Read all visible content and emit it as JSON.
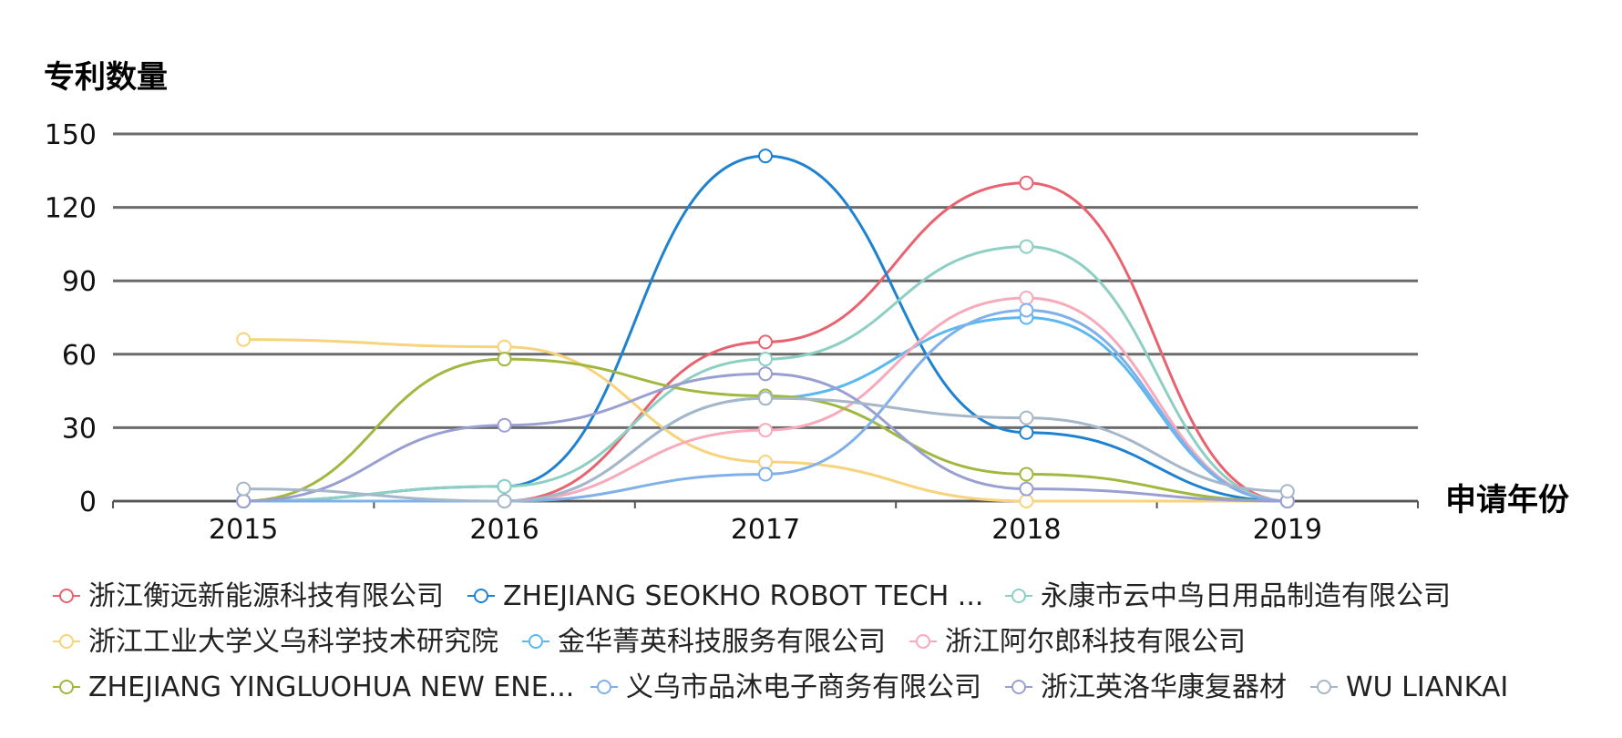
{
  "chart_data": {
    "type": "line",
    "ylabel": "专利数量",
    "xlabel": "申请年份",
    "categories": [
      "2015",
      "2016",
      "2017",
      "2018",
      "2019"
    ],
    "ylim": [
      0,
      150
    ],
    "yticks": [
      0,
      30,
      60,
      90,
      120,
      150
    ],
    "grid": true,
    "legend_position": "bottom",
    "series": [
      {
        "name": "浙江衡远新能源科技有限公司",
        "color": "#e8636f",
        "values": [
          0,
          0,
          65,
          130,
          0
        ]
      },
      {
        "name": "ZHEJIANG SEOKHO ROBOT TECH ...",
        "color": "#1e82d0",
        "values": [
          0,
          6,
          141,
          28,
          0
        ]
      },
      {
        "name": "永康市云中鸟日用品制造有限公司",
        "color": "#8ecfc4",
        "values": [
          0,
          6,
          58,
          104,
          0
        ]
      },
      {
        "name": "浙江工业大学义乌科学技术研究院",
        "color": "#f7d37b",
        "values": [
          66,
          63,
          16,
          0,
          0
        ]
      },
      {
        "name": "金华菁英科技服务有限公司",
        "color": "#5ab8ef",
        "values": [
          0,
          0,
          42,
          75,
          0
        ]
      },
      {
        "name": "浙江阿尔郎科技有限公司",
        "color": "#f7aabb",
        "values": [
          0,
          0,
          29,
          83,
          0
        ]
      },
      {
        "name": "ZHEJIANG YINGLUOHUA NEW ENE...",
        "color": "#a0b840",
        "values": [
          0,
          58,
          43,
          11,
          0
        ]
      },
      {
        "name": "义乌市品沐电子商务有限公司",
        "color": "#7fb0ea",
        "values": [
          0,
          0,
          11,
          78,
          0
        ]
      },
      {
        "name": "浙江英洛华康复器材",
        "color": "#9a9fd2",
        "values": [
          0,
          31,
          52,
          5,
          0
        ]
      },
      {
        "name": "WU LIANKAI",
        "color": "#a5b7c8",
        "values": [
          5,
          0,
          42,
          34,
          4
        ]
      }
    ]
  }
}
